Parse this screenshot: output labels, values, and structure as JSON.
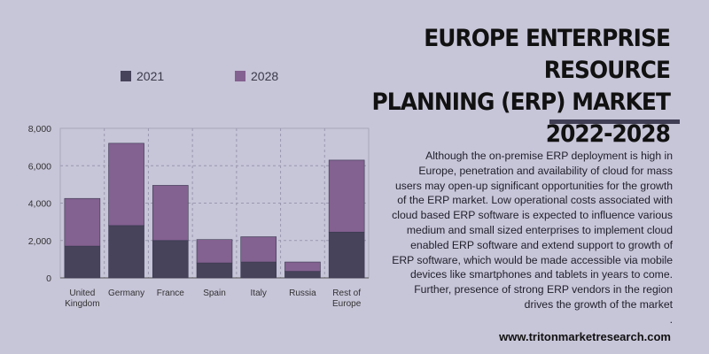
{
  "title_line1": "EUROPE ENTERPRISE RESOURCE",
  "title_line2": "PLANNING (ERP) MARKET 2022-2028",
  "legend": [
    {
      "label": "2021",
      "color": "#46435a"
    },
    {
      "label": "2028",
      "color": "#836190"
    }
  ],
  "paragraph": "Although the on-premise ERP deployment is high in Europe, penetration and availability of cloud for mass users may open-up significant opportunities for the growth of the ERP market. Low operational costs associated with cloud based ERP software is expected to influence various medium and small sized enterprises to implement cloud enabled ERP software and extend support to growth of ERP software, which would be made accessible via mobile devices like smartphones and tablets in years to come. Further, presence of strong ERP vendors in the region drives the growth of the market",
  "paragraph_end": ".",
  "website": "www.tritonmarketresearch.com",
  "chart_data": {
    "type": "bar",
    "stacked": true,
    "categories": [
      [
        "United",
        "Kingdom"
      ],
      [
        "Germany"
      ],
      [
        "France"
      ],
      [
        "Spain"
      ],
      [
        "Italy"
      ],
      [
        "Russia"
      ],
      [
        "Rest of",
        "Europe"
      ]
    ],
    "series": [
      {
        "name": "2021",
        "color": "#46435a",
        "values": [
          1700,
          2800,
          2000,
          800,
          850,
          350,
          2450
        ]
      },
      {
        "name": "2028",
        "color": "#836190",
        "values": [
          2550,
          4400,
          2950,
          1250,
          1350,
          500,
          3850
        ]
      }
    ],
    "ylim": [
      0,
      8000
    ],
    "yticks": [
      "0",
      "2,000",
      "4,000",
      "6,000",
      "8,000"
    ],
    "ytick_values": [
      0,
      2000,
      4000,
      6000,
      8000
    ],
    "grid": true,
    "legend_position": "top-left"
  }
}
